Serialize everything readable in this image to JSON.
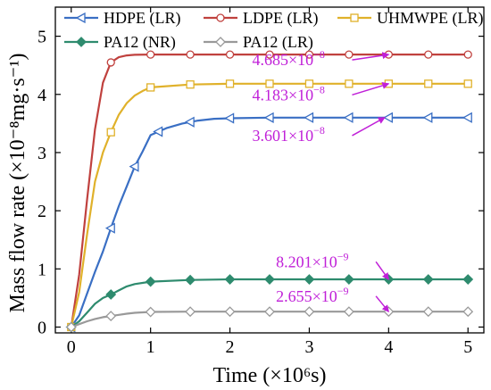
{
  "chart_data": {
    "type": "line",
    "xlabel": "Time (×10⁶s)",
    "ylabel": "Mass flow rate (×10⁻⁸mg·s⁻¹)",
    "xlim": [
      -0.2,
      5.2
    ],
    "ylim": [
      -0.1,
      5.5
    ],
    "xticks": [
      0,
      1,
      2,
      3,
      4,
      5
    ],
    "yticks": [
      0,
      1,
      2,
      3,
      4,
      5
    ],
    "xtick_labels": [
      "0",
      "1",
      "2",
      "3",
      "4",
      "5"
    ],
    "ytick_labels": [
      "0",
      "1",
      "2",
      "3",
      "4",
      "5"
    ],
    "grid": false,
    "legend_position": "top",
    "series": [
      {
        "name": "HDPE (LR)",
        "color": "#3a6fc4",
        "marker": "triangle-left",
        "marker_fill": "none",
        "x": [
          0,
          0.1,
          0.2,
          0.3,
          0.4,
          0.5,
          0.6,
          0.7,
          0.8,
          0.9,
          1.0,
          1.2,
          1.4,
          1.6,
          1.8,
          2.0,
          2.5,
          3.0,
          3.5,
          4.0,
          4.5,
          5.0
        ],
        "y": [
          0,
          0.2,
          0.58,
          0.95,
          1.3,
          1.7,
          2.08,
          2.42,
          2.76,
          3.02,
          3.3,
          3.42,
          3.5,
          3.55,
          3.58,
          3.59,
          3.6,
          3.601,
          3.601,
          3.601,
          3.601,
          3.601
        ],
        "marker_x": [
          0,
          0.5,
          0.8,
          1.1,
          1.5,
          2.0,
          2.5,
          3.0,
          3.5,
          4.0,
          4.5,
          5.0
        ]
      },
      {
        "name": "LDPE (LR)",
        "color": "#c0413e",
        "marker": "circle",
        "marker_fill": "none",
        "x": [
          0,
          0.1,
          0.2,
          0.3,
          0.4,
          0.5,
          0.6,
          0.7,
          0.8,
          1.0,
          1.5,
          2.0,
          2.5,
          3.0,
          3.5,
          4.0,
          4.5,
          5.0
        ],
        "y": [
          0,
          0.9,
          2.2,
          3.4,
          4.2,
          4.55,
          4.64,
          4.67,
          4.68,
          4.685,
          4.685,
          4.685,
          4.685,
          4.685,
          4.685,
          4.685,
          4.685,
          4.685
        ],
        "marker_x": [
          0,
          0.5,
          1.0,
          1.5,
          2.0,
          2.5,
          3.0,
          3.5,
          4.0,
          4.5,
          5.0
        ]
      },
      {
        "name": "UHMWPE (LR)",
        "color": "#e0b12a",
        "marker": "square",
        "marker_fill": "none",
        "x": [
          0,
          0.1,
          0.2,
          0.3,
          0.4,
          0.5,
          0.6,
          0.7,
          0.8,
          0.9,
          1.0,
          1.5,
          2.0,
          2.5,
          3.0,
          3.5,
          4.0,
          4.5,
          5.0
        ],
        "y": [
          0,
          0.6,
          1.6,
          2.5,
          3.0,
          3.35,
          3.65,
          3.85,
          3.98,
          4.06,
          4.12,
          4.17,
          4.183,
          4.183,
          4.183,
          4.183,
          4.183,
          4.183,
          4.183
        ],
        "marker_x": [
          0,
          0.5,
          1.0,
          1.5,
          2.0,
          2.5,
          3.0,
          3.5,
          4.0,
          4.5,
          5.0
        ]
      },
      {
        "name": "PA12 (NR)",
        "color": "#2e8b6e",
        "marker": "diamond",
        "marker_fill": "solid",
        "x": [
          0,
          0.1,
          0.2,
          0.3,
          0.4,
          0.5,
          0.6,
          0.7,
          0.8,
          1.0,
          1.5,
          2.0,
          2.5,
          3.0,
          3.5,
          4.0,
          4.5,
          5.0
        ],
        "y": [
          0,
          0.1,
          0.25,
          0.4,
          0.5,
          0.56,
          0.63,
          0.7,
          0.74,
          0.78,
          0.81,
          0.82,
          0.82,
          0.82,
          0.82,
          0.82,
          0.82,
          0.82
        ],
        "marker_x": [
          0,
          0.5,
          1.0,
          1.5,
          2.0,
          2.5,
          3.0,
          3.5,
          4.0,
          4.5,
          5.0
        ]
      },
      {
        "name": "PA12 (LR)",
        "color": "#999999",
        "marker": "diamond",
        "marker_fill": "none",
        "x": [
          0,
          0.1,
          0.2,
          0.3,
          0.4,
          0.5,
          0.6,
          0.7,
          0.8,
          1.0,
          1.5,
          2.0,
          2.5,
          3.0,
          3.5,
          4.0,
          4.5,
          5.0
        ],
        "y": [
          0,
          0.05,
          0.1,
          0.14,
          0.17,
          0.19,
          0.21,
          0.23,
          0.245,
          0.26,
          0.265,
          0.265,
          0.265,
          0.265,
          0.265,
          0.265,
          0.265,
          0.265
        ],
        "marker_x": [
          0,
          0.5,
          1.0,
          1.5,
          2.0,
          2.5,
          3.0,
          3.5,
          4.0,
          4.5,
          5.0
        ]
      }
    ],
    "annotations": [
      {
        "mantissa": "4.685×10",
        "exponent": "−8",
        "text_x": 2.28,
        "text_y": 4.5,
        "arrow_to_x": 4.0,
        "arrow_to_y": 4.685,
        "color": "#c020d8"
      },
      {
        "mantissa": "4.183×10",
        "exponent": "−8",
        "text_x": 2.28,
        "text_y": 3.9,
        "arrow_to_x": 4.0,
        "arrow_to_y": 4.183,
        "color": "#c020d8"
      },
      {
        "mantissa": "3.601×10",
        "exponent": "−8",
        "text_x": 2.28,
        "text_y": 3.2,
        "arrow_to_x": 3.95,
        "arrow_to_y": 3.601,
        "color": "#c020d8"
      },
      {
        "mantissa": "8.201×10",
        "exponent": "−9",
        "text_x": 2.58,
        "text_y": 1.03,
        "arrow_to_x": 4.0,
        "arrow_to_y": 0.82,
        "color": "#c020d8"
      },
      {
        "mantissa": "2.655×10",
        "exponent": "−9",
        "text_x": 2.58,
        "text_y": 0.44,
        "arrow_to_x": 4.0,
        "arrow_to_y": 0.265,
        "color": "#c020d8"
      }
    ]
  }
}
